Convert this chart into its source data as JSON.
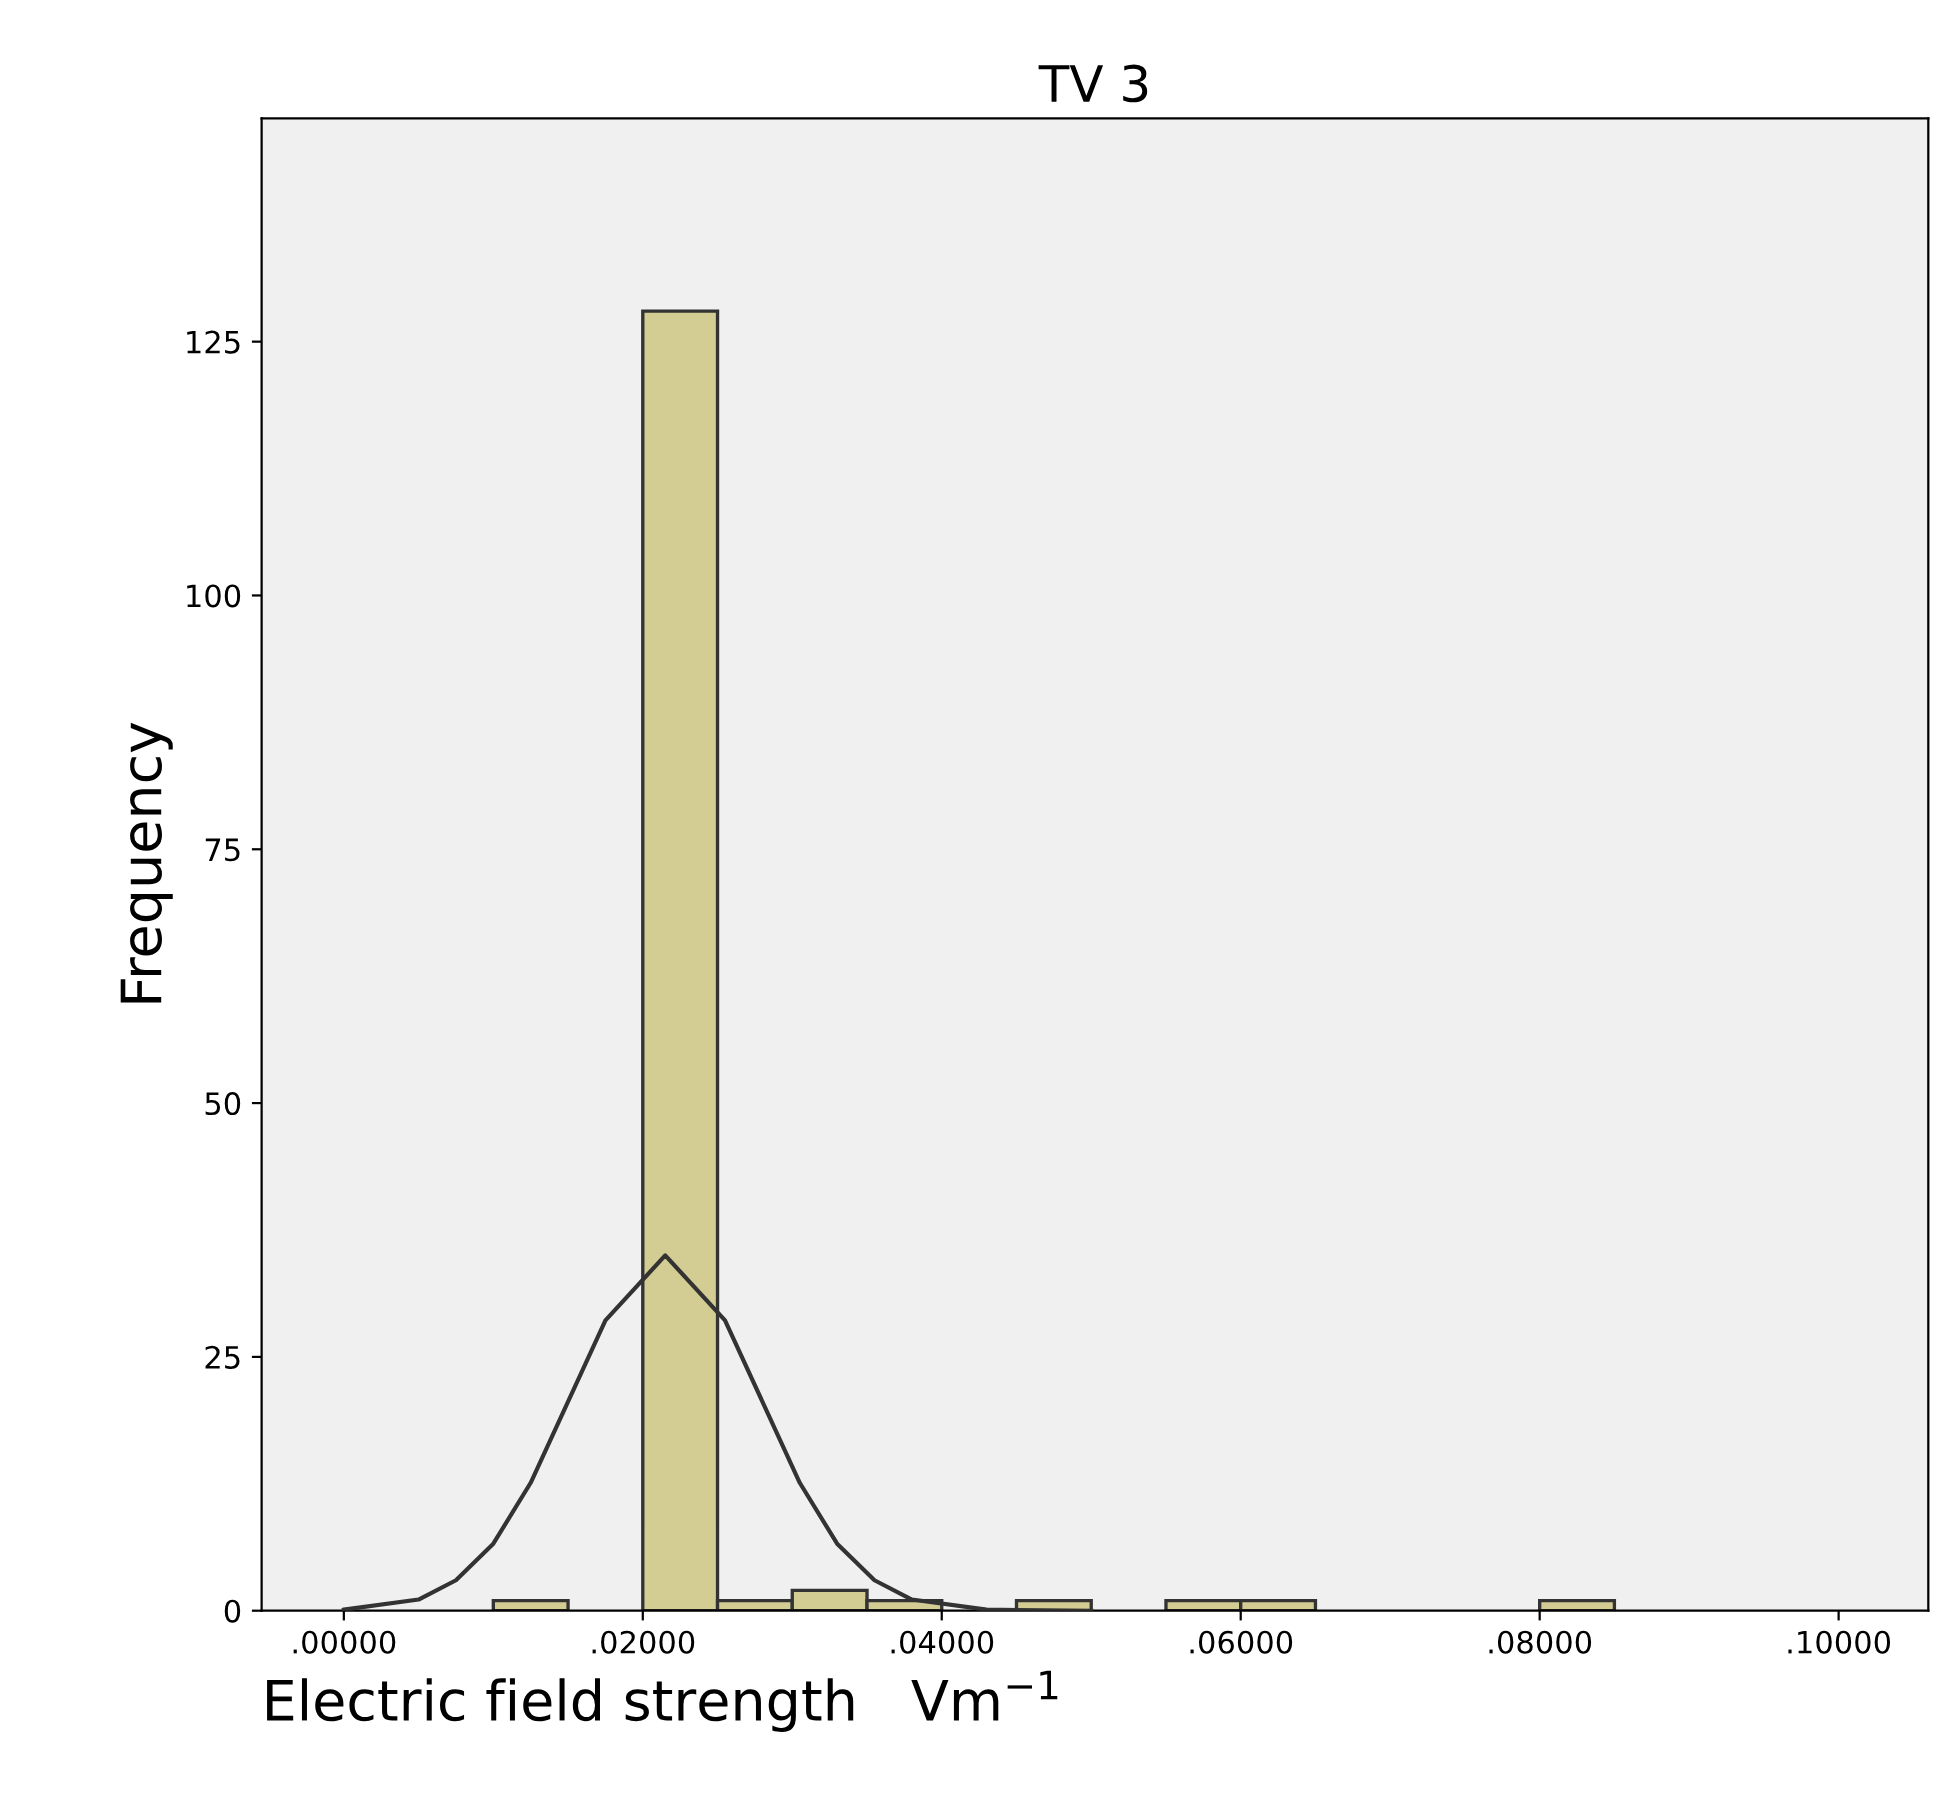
{
  "chart_data": {
    "type": "histogram",
    "title": "TV 3",
    "xlabel": "Electric field strength   Vm$^{−1}$",
    "ylabel": "Frequency",
    "series": [
      {
        "color": "#d4cd93",
        "bins": [
          0.01,
          0.015,
          0.02,
          0.025,
          0.03,
          0.035,
          0.04,
          0.045,
          0.05,
          0.055,
          0.06,
          0.065,
          0.07,
          0.075,
          0.08,
          0.085
        ],
        "values": [
          1,
          0,
          128,
          1,
          2,
          1,
          0,
          1,
          0,
          1,
          1,
          0,
          0,
          0,
          1
        ]
      },
      {
        "type": "line",
        "color": "#333333",
        "x": [
          0,
          0.005,
          0.0075,
          0.01,
          0.0125,
          0.015,
          0.0175,
          0.0215,
          0.0255,
          0.028,
          0.0305,
          0.033,
          0.0355,
          0.038,
          0.043,
          0.05
        ],
        "values": [
          0.1,
          1.1,
          3.0,
          6.6,
          12.6,
          20.6,
          28.6,
          35,
          28.6,
          20.6,
          12.6,
          6.6,
          3.0,
          1.1,
          0.1,
          0
        ]
      }
    ],
    "xlim": [
      -0.0055,
      0.106
    ],
    "ylim": [
      0,
      147
    ],
    "xticks": [
      {
        "value": 0,
        "label": ".00000"
      },
      {
        "value": 0.02,
        "label": ".02000"
      },
      {
        "value": 0.04,
        "label": ".04000"
      },
      {
        "value": 0.06,
        "label": ".06000"
      },
      {
        "value": 0.08,
        "label": ".08000"
      },
      {
        "value": 0.1,
        "label": ".10000"
      }
    ],
    "yticks": [
      0,
      25,
      50,
      75,
      100,
      125
    ],
    "grid": false,
    "marker": "none",
    "line_style": "solid"
  }
}
